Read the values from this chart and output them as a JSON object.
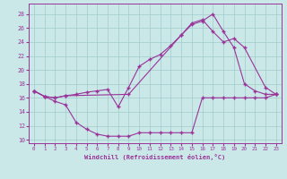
{
  "xlabel": "Windchill (Refroidissement éolien,°C)",
  "bg_color": "#cbe8e8",
  "grid_color": "#a0caca",
  "line_color": "#993399",
  "xlim": [
    -0.5,
    23.5
  ],
  "ylim": [
    9.5,
    29.5
  ],
  "yticks": [
    10,
    12,
    14,
    16,
    18,
    20,
    22,
    24,
    26,
    28
  ],
  "xticks": [
    0,
    1,
    2,
    3,
    4,
    5,
    6,
    7,
    8,
    9,
    10,
    11,
    12,
    13,
    14,
    15,
    16,
    17,
    18,
    19,
    20,
    21,
    22,
    23
  ],
  "line1_x": [
    0,
    1,
    2,
    3,
    4,
    5,
    6,
    7,
    8,
    9,
    10,
    11,
    12,
    13,
    14,
    15,
    16,
    17,
    18,
    19,
    20,
    21,
    22,
    23
  ],
  "line1_y": [
    17.0,
    16.2,
    15.5,
    15.0,
    12.5,
    11.5,
    10.8,
    10.5,
    10.5,
    10.5,
    11.0,
    11.0,
    11.0,
    11.0,
    11.0,
    11.0,
    16.0,
    16.0,
    16.0,
    16.0,
    16.0,
    16.0,
    16.0,
    16.5
  ],
  "line2_x": [
    0,
    1,
    2,
    3,
    4,
    5,
    6,
    7,
    8,
    9,
    10,
    11,
    12,
    13,
    14,
    15,
    16,
    17,
    18,
    19,
    20,
    21,
    22,
    23
  ],
  "line2_y": [
    17.0,
    16.2,
    16.0,
    16.3,
    16.5,
    16.8,
    17.0,
    17.2,
    14.7,
    17.5,
    20.5,
    21.5,
    22.2,
    23.5,
    25.0,
    26.5,
    27.0,
    28.0,
    25.5,
    23.2,
    18.0,
    17.0,
    16.5,
    16.5
  ],
  "line3_x": [
    0,
    1,
    2,
    3,
    9,
    14,
    15,
    16,
    17,
    18,
    19,
    20,
    22,
    23
  ],
  "line3_y": [
    17.0,
    16.2,
    16.0,
    16.3,
    16.5,
    25.0,
    26.7,
    27.2,
    25.5,
    24.0,
    24.5,
    23.2,
    17.5,
    16.5
  ]
}
